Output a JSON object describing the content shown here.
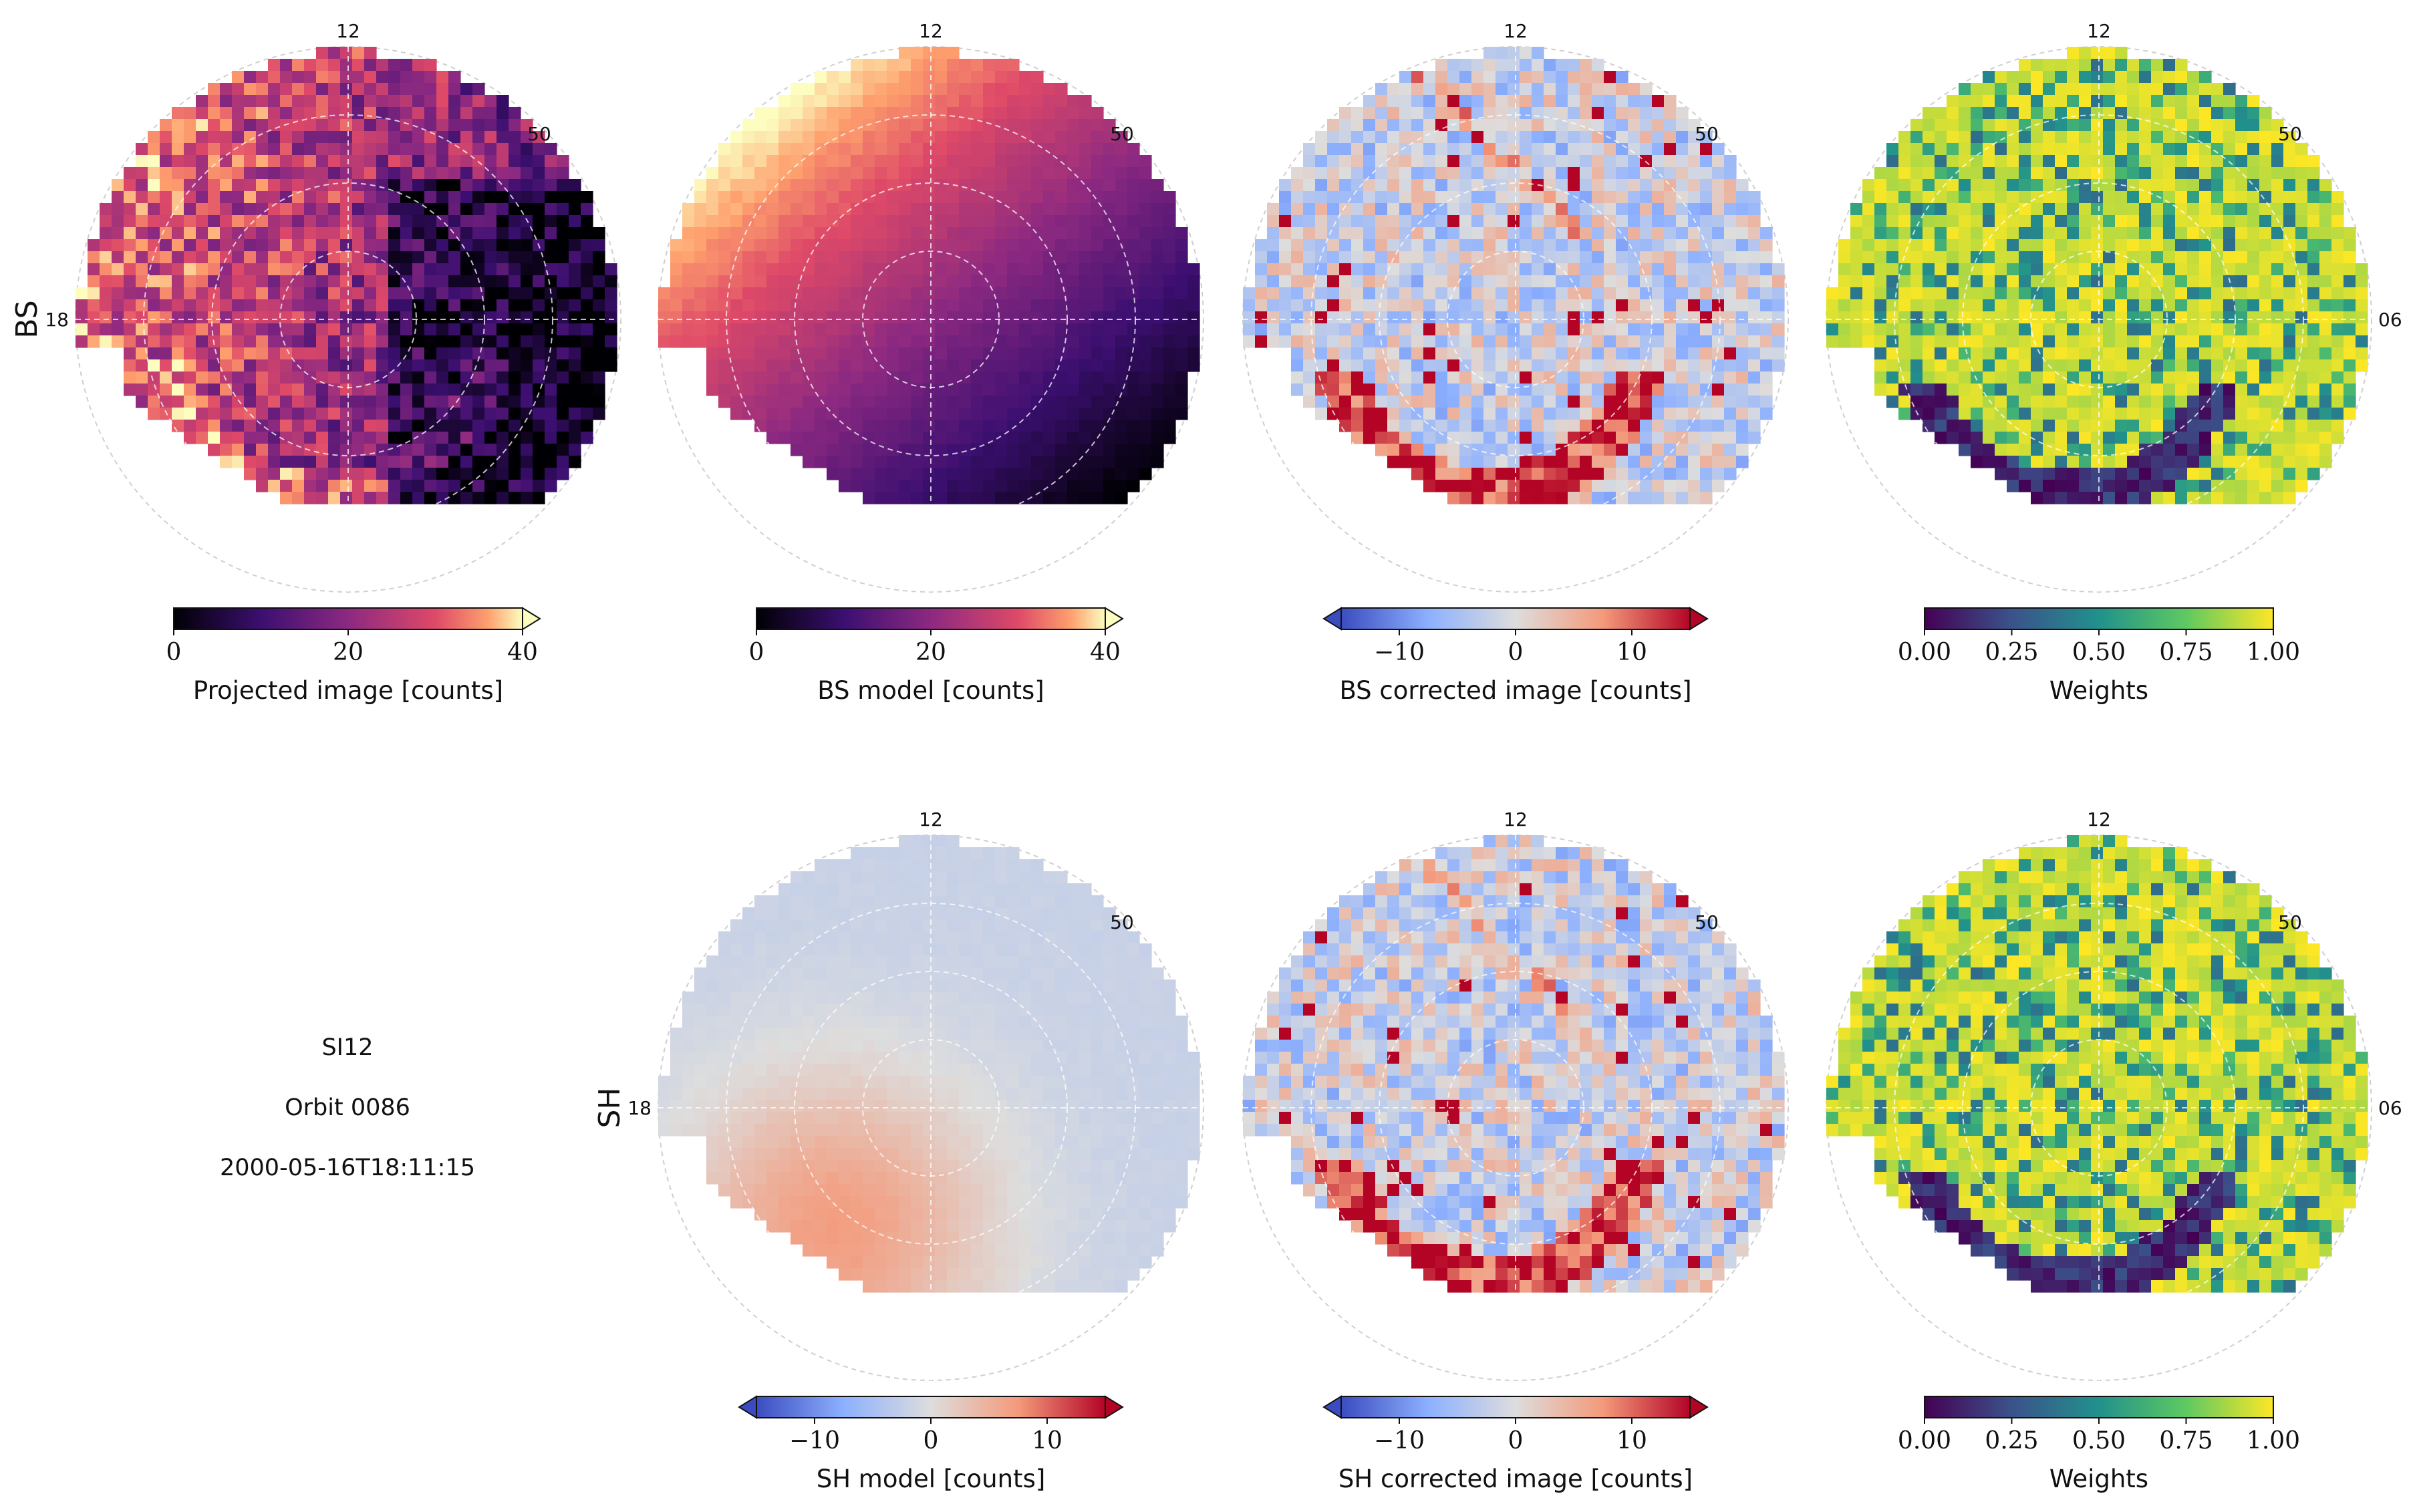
{
  "figure": {
    "info_lines": [
      "SI12",
      "Orbit 0086",
      "2000-05-16T18:11:15"
    ],
    "row_labels": [
      "BS",
      "SH"
    ]
  },
  "chart_data": [
    {
      "type": "heatmap",
      "row": 0,
      "col": 0,
      "title": "",
      "cmap": "magma",
      "colorbar_label": "Projected image [counts]",
      "clim": [
        0,
        40
      ],
      "ticks": [
        "0",
        "20",
        "40"
      ],
      "extend": "max",
      "mlt_labels": {
        "12": "12",
        "18": "18"
      },
      "lat_label": "50",
      "row_label": "BS",
      "pattern": "projected"
    },
    {
      "type": "heatmap",
      "row": 0,
      "col": 1,
      "title": "",
      "cmap": "magma",
      "colorbar_label": "BS model [counts]",
      "clim": [
        0,
        40
      ],
      "ticks": [
        "0",
        "20",
        "40"
      ],
      "extend": "max",
      "mlt_labels": {
        "12": "12"
      },
      "lat_label": "50",
      "pattern": "bs_model"
    },
    {
      "type": "heatmap",
      "row": 0,
      "col": 2,
      "title": "",
      "cmap": "coolwarm",
      "colorbar_label": "BS corrected image [counts]",
      "clim": [
        -15,
        15
      ],
      "ticks": [
        "−10",
        "0",
        "10"
      ],
      "tick_values": [
        -10,
        0,
        10
      ],
      "extend": "both",
      "mlt_labels": {
        "12": "12"
      },
      "lat_label": "50",
      "pattern": "corrected"
    },
    {
      "type": "heatmap",
      "row": 0,
      "col": 3,
      "title": "",
      "cmap": "viridis",
      "colorbar_label": "Weights",
      "clim": [
        0,
        1
      ],
      "ticks": [
        "0.00",
        "0.25",
        "0.50",
        "0.75",
        "1.00"
      ],
      "extend": "neither",
      "mlt_labels": {
        "12": "12",
        "06": "06"
      },
      "lat_label": "50",
      "pattern": "weights"
    },
    {
      "type": "heatmap",
      "row": 1,
      "col": 1,
      "title": "",
      "cmap": "coolwarm",
      "colorbar_label": "SH model [counts]",
      "clim": [
        -15,
        15
      ],
      "ticks": [
        "−10",
        "0",
        "10"
      ],
      "tick_values": [
        -10,
        0,
        10
      ],
      "extend": "both",
      "mlt_labels": {
        "12": "12",
        "18": "18"
      },
      "lat_label": "50",
      "row_label": "SH",
      "pattern": "sh_model"
    },
    {
      "type": "heatmap",
      "row": 1,
      "col": 2,
      "title": "",
      "cmap": "coolwarm",
      "colorbar_label": "SH corrected image [counts]",
      "clim": [
        -15,
        15
      ],
      "ticks": [
        "−10",
        "0",
        "10"
      ],
      "tick_values": [
        -10,
        0,
        10
      ],
      "extend": "both",
      "mlt_labels": {
        "12": "12"
      },
      "lat_label": "50",
      "pattern": "corrected"
    },
    {
      "type": "heatmap",
      "row": 1,
      "col": 3,
      "title": "",
      "cmap": "viridis",
      "colorbar_label": "Weights",
      "clim": [
        0,
        1
      ],
      "ticks": [
        "0.00",
        "0.25",
        "0.50",
        "0.75",
        "1.00"
      ],
      "extend": "neither",
      "mlt_labels": {
        "12": "12",
        "06": "06"
      },
      "lat_label": "50",
      "pattern": "weights"
    }
  ]
}
